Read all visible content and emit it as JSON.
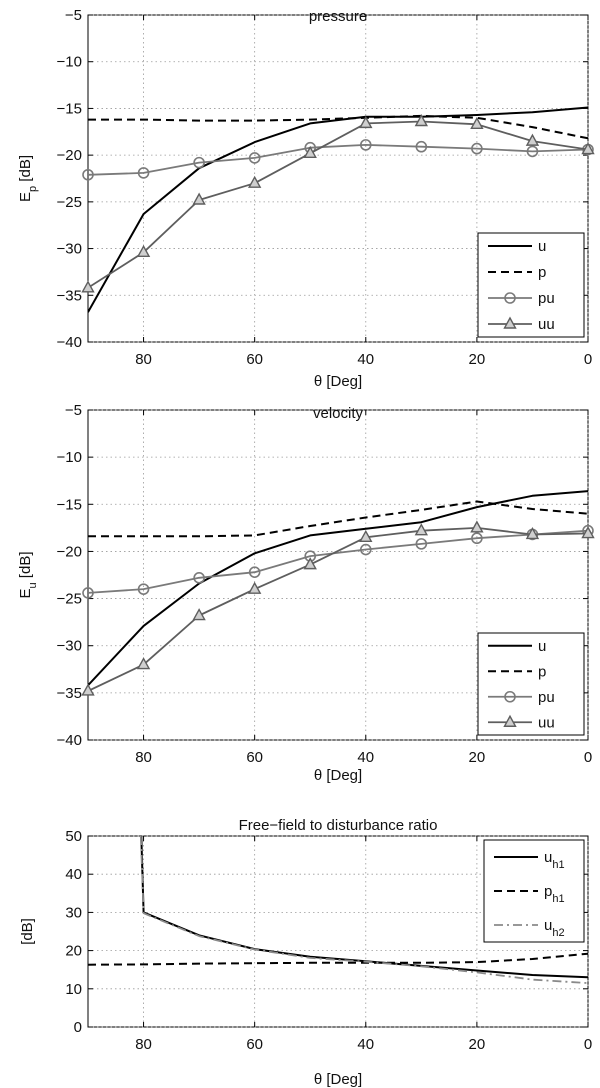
{
  "chart_data": [
    {
      "type": "line",
      "title": "pressure",
      "xlabel": "θ [Deg]",
      "ylabel_main": "E",
      "ylabel_sub": "p",
      "ylabel_tail": " [dB]",
      "xlim": [
        90,
        0
      ],
      "ylim": [
        -40,
        -5
      ],
      "xticks": [
        80,
        60,
        40,
        20,
        0
      ],
      "yticks": [
        -5,
        -10,
        -15,
        -20,
        -25,
        -30,
        -35,
        -40
      ],
      "grid": true,
      "legend_position": "bottom-right",
      "series": [
        {
          "name": "u",
          "style": "solid",
          "color": "#000000",
          "marker": "none",
          "x": [
            90,
            80,
            70,
            60,
            50,
            40,
            30,
            20,
            10,
            0
          ],
          "y": [
            -36.8,
            -26.3,
            -21.4,
            -18.6,
            -16.6,
            -15.9,
            -15.9,
            -15.7,
            -15.4,
            -14.9
          ]
        },
        {
          "name": "p",
          "style": "dashed",
          "color": "#000000",
          "marker": "none",
          "x": [
            90,
            80,
            70,
            60,
            50,
            40,
            30,
            20,
            10,
            0
          ],
          "y": [
            -16.2,
            -16.2,
            -16.3,
            -16.3,
            -16.2,
            -16.0,
            -15.8,
            -16.0,
            -17.0,
            -18.2
          ]
        },
        {
          "name": "pu",
          "style": "solid",
          "color": "#7a7a7a",
          "marker": "circle",
          "x": [
            90,
            80,
            70,
            60,
            50,
            40,
            30,
            20,
            10,
            0
          ],
          "y": [
            -22.1,
            -21.9,
            -20.8,
            -20.3,
            -19.2,
            -18.9,
            -19.1,
            -19.3,
            -19.6,
            -19.4
          ]
        },
        {
          "name": "uu",
          "style": "solid",
          "color": "#5e5e5e",
          "marker": "triangle",
          "x": [
            90,
            80,
            70,
            60,
            50,
            40,
            30,
            20,
            10,
            0
          ],
          "y": [
            -34.2,
            -30.4,
            -24.8,
            -23.0,
            -19.8,
            -16.6,
            -16.4,
            -16.7,
            -18.5,
            -19.4
          ]
        }
      ]
    },
    {
      "type": "line",
      "title": "velocity",
      "xlabel": "θ [Deg]",
      "ylabel_main": "E",
      "ylabel_sub": "u",
      "ylabel_tail": " [dB]",
      "xlim": [
        90,
        0
      ],
      "ylim": [
        -40,
        -5
      ],
      "xticks": [
        80,
        60,
        40,
        20,
        0
      ],
      "yticks": [
        -5,
        -10,
        -15,
        -20,
        -25,
        -30,
        -35,
        -40
      ],
      "grid": true,
      "legend_position": "bottom-right",
      "series": [
        {
          "name": "u",
          "style": "solid",
          "color": "#000000",
          "marker": "none",
          "x": [
            90,
            80,
            70,
            60,
            50,
            40,
            30,
            20,
            10,
            0
          ],
          "y": [
            -34.2,
            -27.9,
            -23.4,
            -20.2,
            -18.3,
            -17.6,
            -16.9,
            -15.3,
            -14.1,
            -13.6
          ]
        },
        {
          "name": "p",
          "style": "dashed",
          "color": "#000000",
          "marker": "none",
          "x": [
            90,
            80,
            70,
            60,
            50,
            40,
            30,
            20,
            10,
            0
          ],
          "y": [
            -18.4,
            -18.4,
            -18.4,
            -18.3,
            -17.3,
            -16.4,
            -15.6,
            -14.7,
            -15.5,
            -16.0
          ]
        },
        {
          "name": "pu",
          "style": "solid",
          "color": "#7a7a7a",
          "marker": "circle",
          "x": [
            90,
            80,
            70,
            60,
            50,
            40,
            30,
            20,
            10,
            0
          ],
          "y": [
            -24.4,
            -24.0,
            -22.8,
            -22.2,
            -20.5,
            -19.8,
            -19.2,
            -18.6,
            -18.2,
            -17.8
          ]
        },
        {
          "name": "uu",
          "style": "solid",
          "color": "#5e5e5e",
          "marker": "triangle",
          "x": [
            90,
            80,
            70,
            60,
            50,
            40,
            30,
            20,
            10,
            0
          ],
          "y": [
            -34.8,
            -32.0,
            -26.8,
            -24.0,
            -21.4,
            -18.5,
            -17.8,
            -17.5,
            -18.2,
            -18.1
          ]
        }
      ]
    },
    {
      "type": "line",
      "title": "Free−field to disturbance ratio",
      "xlabel": "θ [Deg]",
      "ylabel_main": "[dB]",
      "ylabel_sub": "",
      "ylabel_tail": "",
      "xlim": [
        90,
        0
      ],
      "ylim": [
        0,
        50
      ],
      "xticks": [
        80,
        60,
        40,
        20,
        0
      ],
      "yticks": [
        50,
        40,
        30,
        20,
        10,
        0
      ],
      "grid": true,
      "legend_position": "top-right",
      "series": [
        {
          "name": "u",
          "sub": "h1",
          "style": "solid",
          "color": "#000000",
          "marker": "none",
          "x": [
            80.4,
            80,
            70,
            60,
            50,
            40,
            30,
            20,
            10,
            0
          ],
          "y": [
            50,
            30.0,
            24.0,
            20.4,
            18.4,
            17.2,
            16.0,
            14.8,
            13.6,
            13.0
          ]
        },
        {
          "name": "p",
          "sub": "h1",
          "style": "dashed",
          "color": "#000000",
          "marker": "none",
          "x": [
            90,
            80,
            70,
            60,
            50,
            40,
            30,
            20,
            10,
            0
          ],
          "y": [
            16.3,
            16.4,
            16.6,
            16.7,
            16.8,
            16.8,
            16.8,
            17.0,
            17.8,
            19.2
          ]
        },
        {
          "name": "u",
          "sub": "h2",
          "style": "dashdot",
          "color": "#8a8a8a",
          "marker": "none",
          "x": [
            80.5,
            80,
            70,
            60,
            50,
            40,
            30,
            20,
            10,
            0
          ],
          "y": [
            50,
            29.8,
            23.8,
            20.3,
            18.1,
            17.1,
            15.9,
            14.3,
            12.4,
            11.5
          ]
        }
      ]
    }
  ]
}
